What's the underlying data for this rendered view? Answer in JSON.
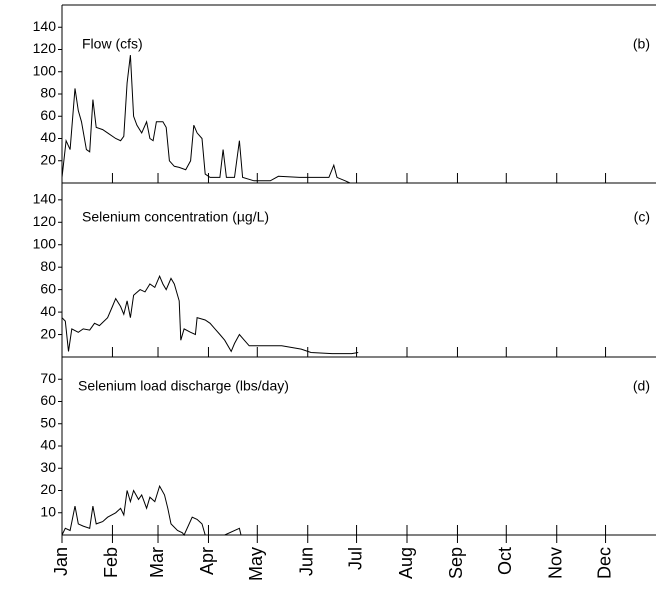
{
  "chart_data": [
    {
      "type": "line",
      "title": "Flow (cfs)",
      "label": "(b)",
      "color": "#000000",
      "x": [
        0,
        2.5,
        5,
        8,
        10,
        12,
        15,
        17,
        19,
        21,
        25,
        28,
        33,
        36,
        38,
        40,
        42,
        44,
        46,
        49,
        52,
        54,
        56,
        58,
        62,
        64,
        66,
        69,
        72,
        76,
        79,
        81,
        83,
        86,
        88,
        91,
        97,
        99,
        101,
        106,
        109,
        111,
        118,
        128,
        133,
        146,
        164,
        167,
        169,
        174,
        177
      ],
      "values": [
        5,
        38,
        30,
        85,
        65,
        55,
        30,
        28,
        75,
        50,
        48,
        45,
        40,
        38,
        42,
        90,
        115,
        60,
        52,
        45,
        55,
        40,
        38,
        55,
        55,
        50,
        20,
        15,
        14,
        12,
        20,
        52,
        45,
        40,
        8,
        5,
        5,
        30,
        5,
        5,
        38,
        5,
        2,
        2,
        6,
        5,
        5,
        16,
        5,
        2,
        0
      ],
      "xlim": [
        0,
        365
      ],
      "ylim": [
        0,
        160
      ],
      "yticks": [
        20,
        40,
        60,
        80,
        100,
        120,
        140
      ]
    },
    {
      "type": "line",
      "title": "Selenium concentration (µg/L)",
      "label": "(c)",
      "color": "#000000",
      "x": [
        0,
        2,
        4,
        6,
        10,
        13,
        17,
        20,
        23,
        28,
        31,
        33,
        36,
        38,
        40,
        42,
        44,
        48,
        51,
        54,
        57,
        60,
        62,
        64,
        67,
        69,
        72,
        73,
        75,
        79,
        82,
        83,
        88,
        91,
        94,
        97,
        100,
        104,
        106,
        109,
        112,
        115,
        123,
        135,
        147,
        153,
        166,
        178,
        182
      ],
      "values": [
        35,
        32,
        5,
        25,
        22,
        25,
        24,
        30,
        28,
        35,
        45,
        52,
        45,
        38,
        50,
        35,
        55,
        60,
        58,
        65,
        62,
        72,
        65,
        60,
        70,
        65,
        50,
        15,
        25,
        22,
        20,
        35,
        33,
        30,
        25,
        20,
        15,
        5,
        12,
        20,
        15,
        10,
        10,
        10,
        7,
        4,
        3,
        3,
        4
      ],
      "xlim": [
        0,
        365
      ],
      "ylim": [
        0,
        155
      ],
      "yticks": [
        20,
        40,
        60,
        80,
        100,
        120,
        140
      ]
    },
    {
      "type": "line",
      "title": "Selenium load discharge (lbs/day)",
      "label": "(d)",
      "color": "#000000",
      "x": [
        0,
        2,
        5,
        8,
        10,
        13,
        17,
        19,
        21,
        25,
        28,
        33,
        36,
        38,
        40,
        42,
        44,
        47,
        49,
        52,
        54,
        57,
        60,
        63,
        65,
        67,
        71,
        74,
        75,
        80,
        83,
        86,
        88,
        100,
        109,
        110,
        146
      ],
      "values": [
        0,
        3,
        2,
        13,
        5,
        4,
        3,
        13,
        5,
        6,
        8,
        10,
        12,
        9,
        20,
        15,
        20,
        16,
        18,
        12,
        17,
        15,
        22,
        18,
        12,
        5,
        2,
        1,
        0,
        8,
        7,
        5,
        0,
        0,
        3,
        0,
        0
      ],
      "xlim": [
        0,
        365
      ],
      "ylim": [
        0,
        80
      ],
      "yticks": [
        10,
        20,
        30,
        40,
        50,
        60,
        70
      ],
      "xticks": [
        {
          "value": 0,
          "label": "Jan"
        },
        {
          "value": 31,
          "label": "Feb"
        },
        {
          "value": 59,
          "label": "Mar"
        },
        {
          "value": 90,
          "label": "Apr"
        },
        {
          "value": 120,
          "label": "May"
        },
        {
          "value": 151,
          "label": "Jun"
        },
        {
          "value": 181,
          "label": "Jul"
        },
        {
          "value": 212,
          "label": "Aug"
        },
        {
          "value": 243,
          "label": "Sep"
        },
        {
          "value": 273,
          "label": "Oct"
        },
        {
          "value": 304,
          "label": "Nov"
        },
        {
          "value": 334,
          "label": "Dec"
        }
      ]
    }
  ]
}
